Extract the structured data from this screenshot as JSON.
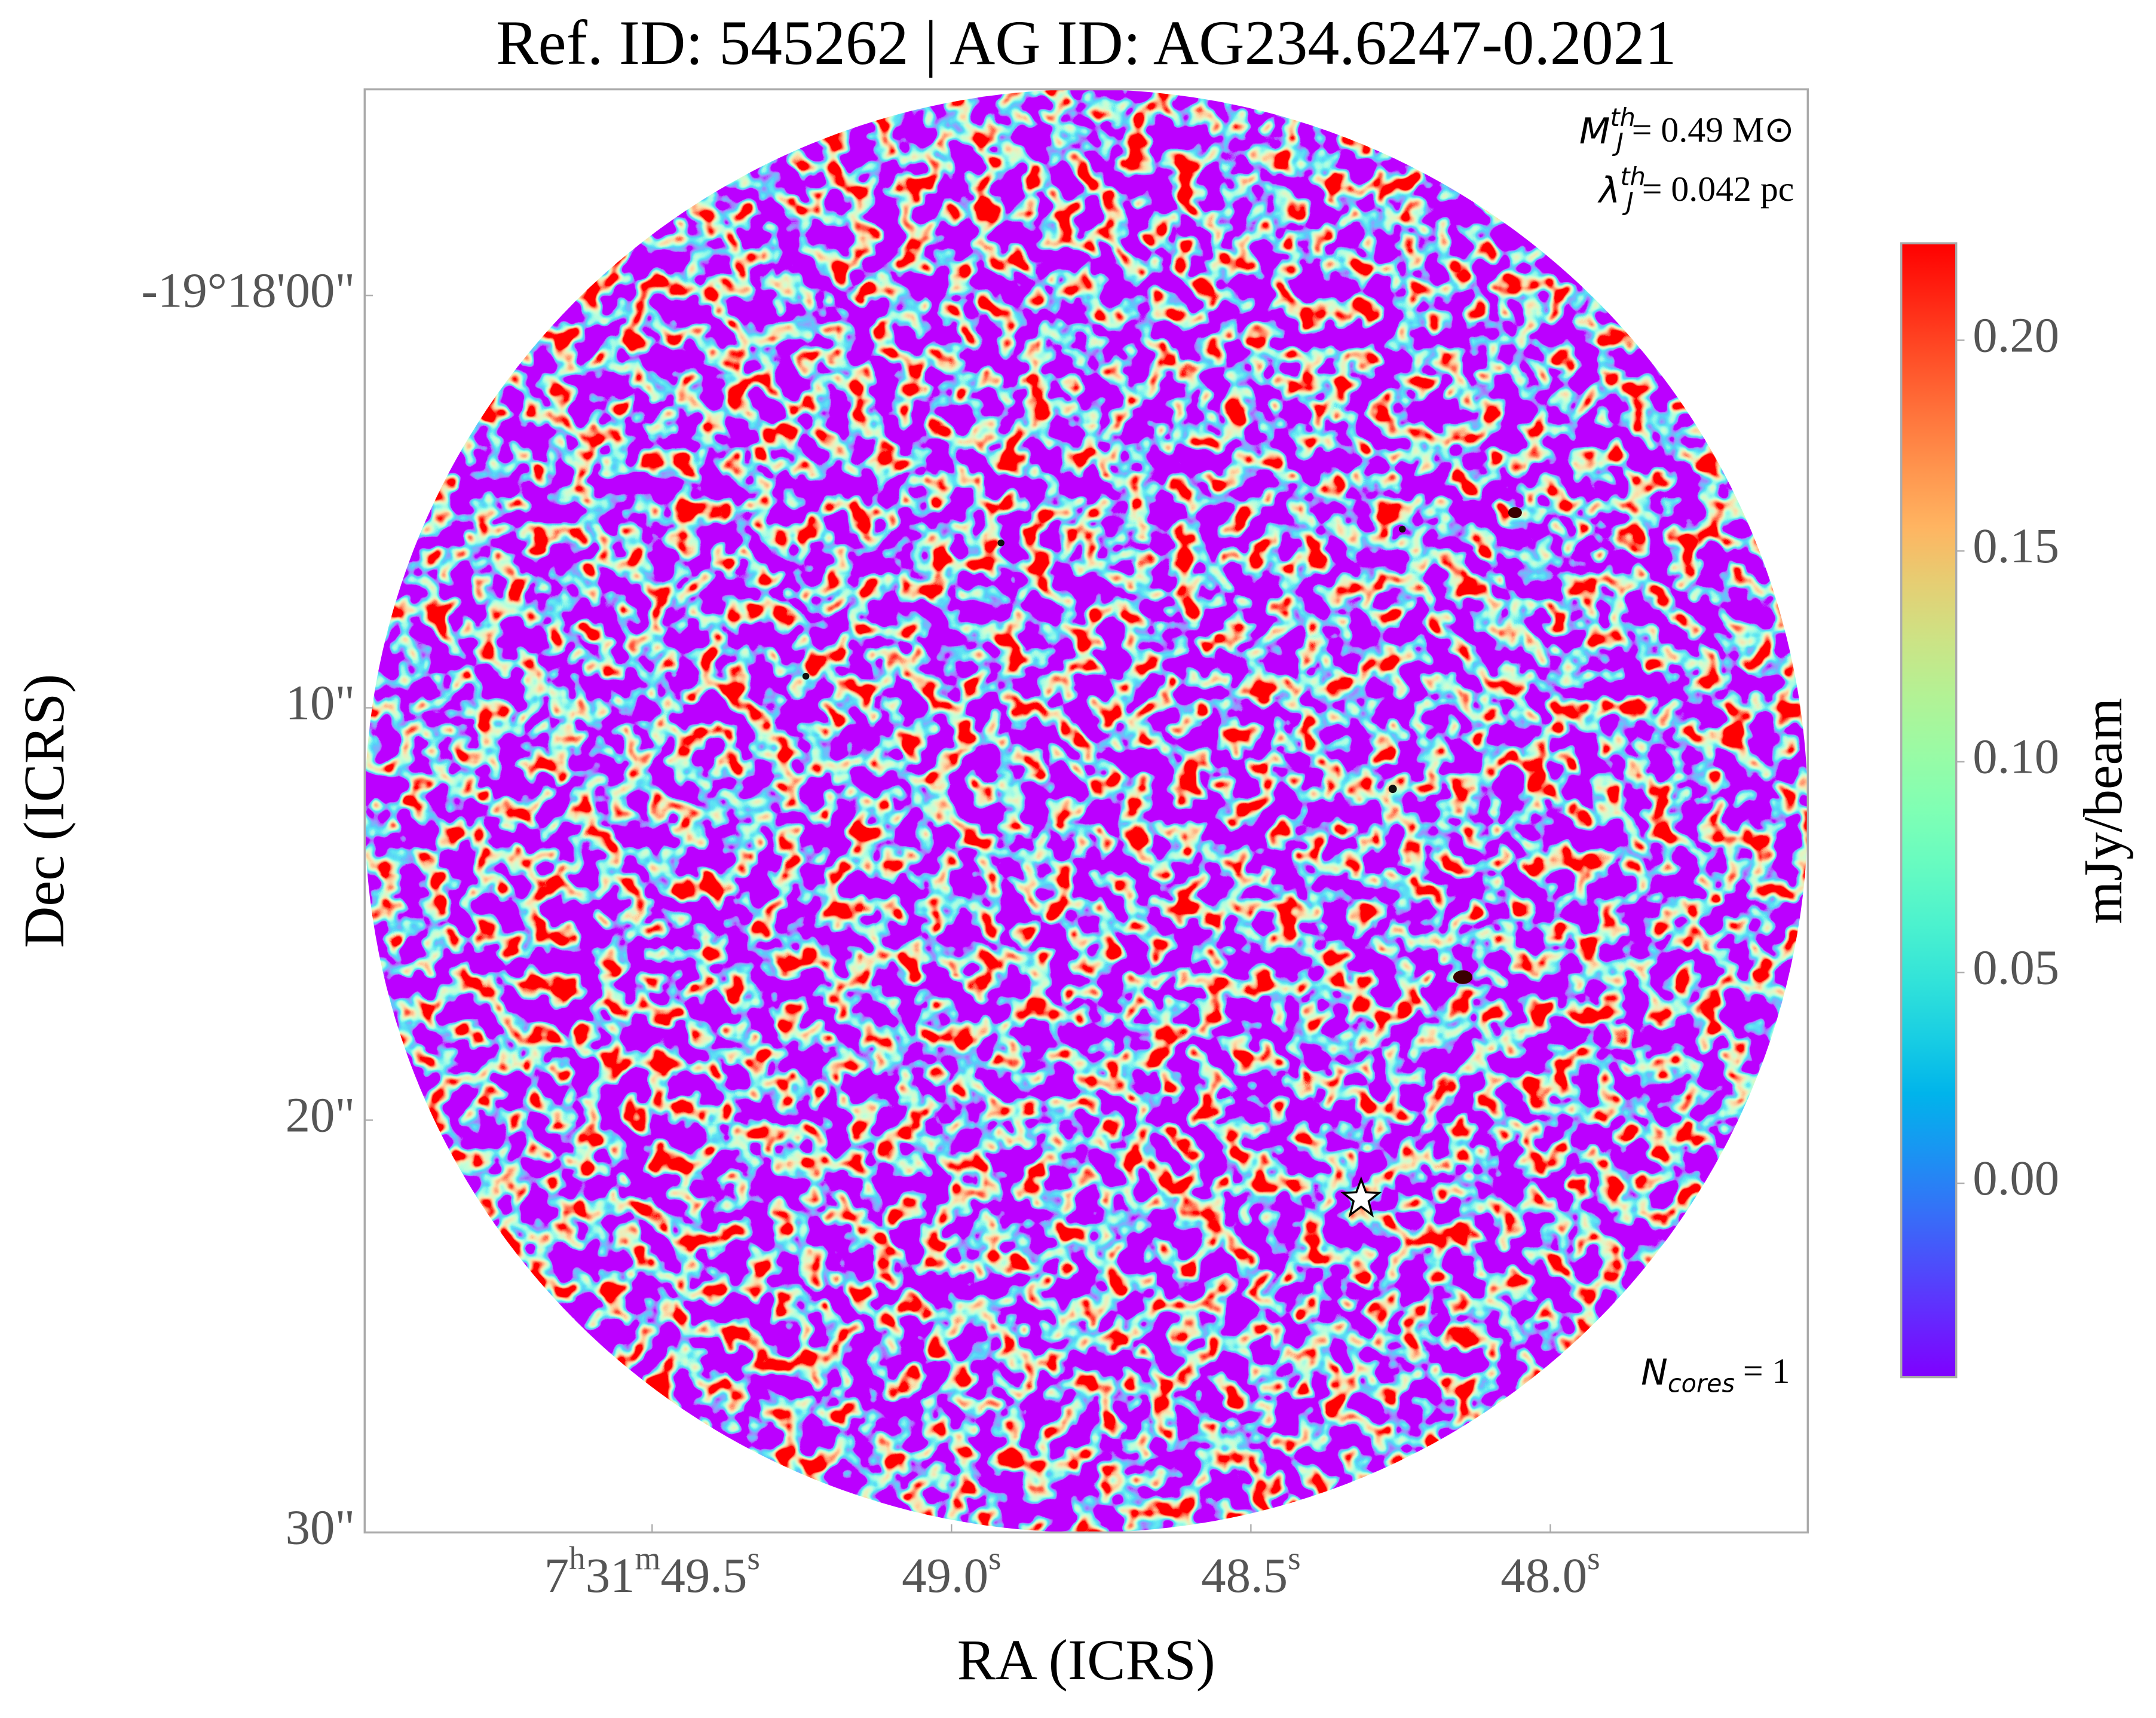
{
  "chart_data": {
    "type": "image",
    "title": "Ref. ID: 545262 | AG ID: AG234.6247-0.2021",
    "xlabel": "RA (ICRS)",
    "ylabel": "Dec (ICRS)",
    "colorbar_label": "mJy/beam",
    "cmap": "rainbow",
    "xlim": [
      49.98,
      47.57
    ],
    "xticks": [
      {
        "value": 49.5,
        "label": "7h31m49.5s"
      },
      {
        "value": 49.0,
        "label": "49.0s"
      },
      {
        "value": 48.5,
        "label": "48.5s"
      },
      {
        "value": 48.0,
        "label": "48.0s"
      }
    ],
    "ylim": [
      30,
      -5
    ],
    "yticks": [
      {
        "value": 0,
        "label": "-19°18'00\""
      },
      {
        "value": 10,
        "label": "10\""
      },
      {
        "value": 20,
        "label": "20\""
      },
      {
        "value": 30,
        "label": "30\""
      }
    ],
    "clim": [
      -0.046,
      0.223
    ],
    "cticks": [
      {
        "value": 0,
        "label": "0.00"
      },
      {
        "value": 0.05,
        "label": "0.05"
      },
      {
        "value": 0.1,
        "label": "0.10"
      },
      {
        "value": 0.15,
        "label": "0.15"
      },
      {
        "value": 0.2,
        "label": "0.20"
      }
    ],
    "annotations": {
      "jeans_mass": {
        "symbol": "M",
        "sub": "J",
        "sup": "th",
        "text": "= 0.49 M⊙"
      },
      "jeans_length": {
        "symbol": "λ",
        "sub": "J",
        "sup": "th",
        "text": "= 0.042 pc"
      },
      "cores": {
        "symbol": "N",
        "sub": "cores",
        "text": "= 1"
      }
    }
  }
}
